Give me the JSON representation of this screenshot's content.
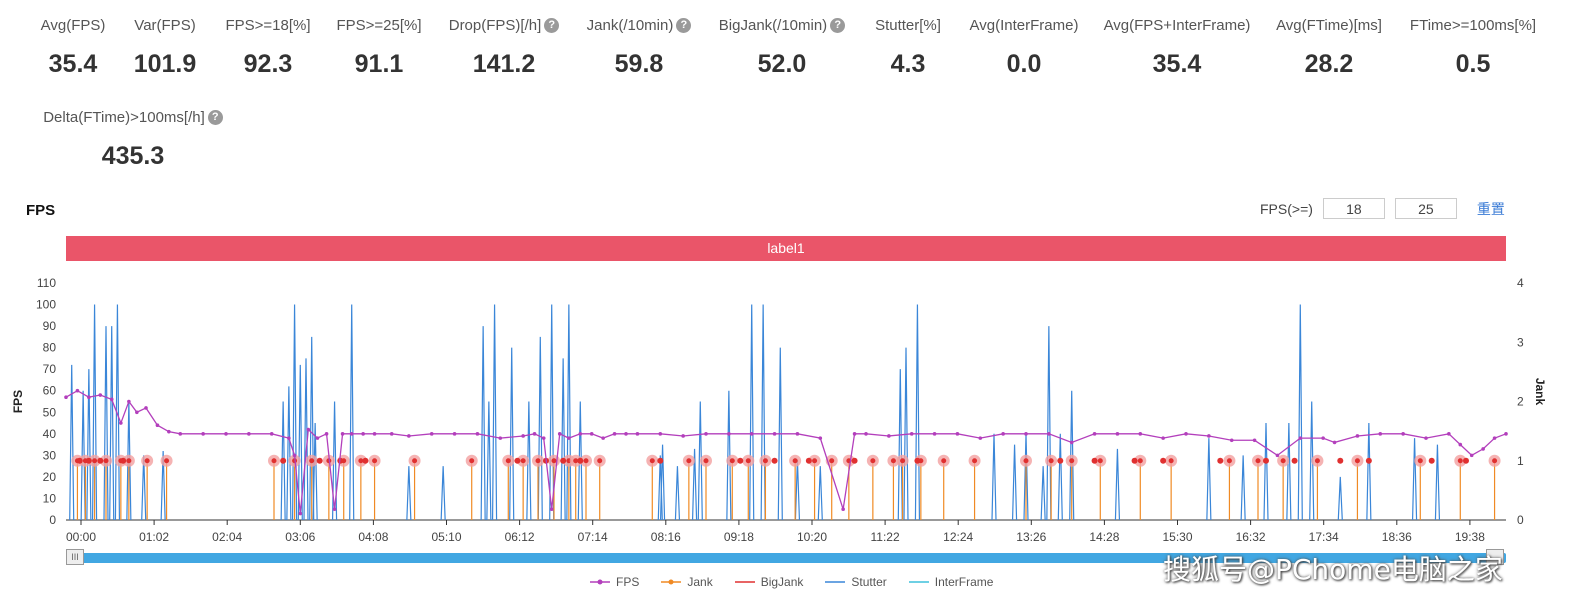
{
  "stats": [
    {
      "label": "Avg(FPS)",
      "value": "35.4",
      "help": false
    },
    {
      "label": "Var(FPS)",
      "value": "101.9",
      "help": false
    },
    {
      "label": "FPS>=18[%]",
      "value": "92.3",
      "help": false
    },
    {
      "label": "FPS>=25[%]",
      "value": "91.1",
      "help": false
    },
    {
      "label": "Drop(FPS)[/h]",
      "value": "141.2",
      "help": true
    },
    {
      "label": "Jank(/10min)",
      "value": "59.8",
      "help": true
    },
    {
      "label": "BigJank(/10min)",
      "value": "52.0",
      "help": true
    },
    {
      "label": "Stutter[%]",
      "value": "4.3",
      "help": false
    },
    {
      "label": "Avg(InterFrame)",
      "value": "0.0",
      "help": false
    },
    {
      "label": "Avg(FPS+InterFrame)",
      "value": "35.4",
      "help": false
    },
    {
      "label": "Avg(FTime)[ms]",
      "value": "28.2",
      "help": false
    },
    {
      "label": "FTime>=100ms[%]",
      "value": "0.5",
      "help": false
    },
    {
      "label": "Delta(FTime)>100ms[/h]",
      "value": "435.3",
      "help": true
    }
  ],
  "help_glyph": "?",
  "chart_title": "FPS",
  "fps_filter": {
    "label": "FPS(>=)",
    "low": "18",
    "high": "25",
    "reset": "重置"
  },
  "label_bar": "label1",
  "slider_grip": "III",
  "watermark": "搜狐号@PChome电脑之家",
  "colors": {
    "fps": "#b33fbc",
    "jank": "#f08a24",
    "bigjank": "#e03030",
    "stutter": "#3a86d8",
    "interframe": "#3fc0dc",
    "label_bar": "#ea5569",
    "slider": "#41a7e2"
  },
  "chart_data": {
    "type": "line",
    "x_ticks": [
      "00:00",
      "01:02",
      "02:04",
      "03:06",
      "04:08",
      "05:10",
      "06:12",
      "07:14",
      "08:16",
      "09:18",
      "10:20",
      "11:22",
      "12:24",
      "13:26",
      "14:28",
      "15:30",
      "16:32",
      "17:34",
      "18:36",
      "19:38"
    ],
    "y_left": {
      "label": "FPS",
      "min": 0,
      "max": 110,
      "ticks": [
        0,
        10,
        20,
        30,
        40,
        50,
        60,
        70,
        80,
        90,
        100,
        110
      ]
    },
    "y_right": {
      "label": "Jank",
      "min": 0,
      "max": 4,
      "ticks": [
        0,
        1,
        2,
        3,
        4
      ]
    },
    "x_range_seconds": [
      0,
      1260
    ],
    "series": [
      {
        "name": "FPS",
        "axis": "left",
        "points": [
          [
            0,
            57
          ],
          [
            10,
            60
          ],
          [
            20,
            57
          ],
          [
            30,
            58
          ],
          [
            40,
            56
          ],
          [
            48,
            45
          ],
          [
            55,
            55
          ],
          [
            62,
            50
          ],
          [
            70,
            52
          ],
          [
            80,
            44
          ],
          [
            90,
            41
          ],
          [
            100,
            40
          ],
          [
            120,
            40
          ],
          [
            140,
            40
          ],
          [
            160,
            40
          ],
          [
            180,
            40
          ],
          [
            195,
            38
          ],
          [
            200,
            30
          ],
          [
            205,
            3
          ],
          [
            212,
            42
          ],
          [
            220,
            38
          ],
          [
            228,
            40
          ],
          [
            235,
            5
          ],
          [
            242,
            40
          ],
          [
            250,
            40
          ],
          [
            260,
            40
          ],
          [
            270,
            40
          ],
          [
            285,
            40
          ],
          [
            300,
            39
          ],
          [
            320,
            40
          ],
          [
            340,
            40
          ],
          [
            360,
            40
          ],
          [
            380,
            38
          ],
          [
            400,
            39
          ],
          [
            410,
            40
          ],
          [
            418,
            38
          ],
          [
            425,
            5
          ],
          [
            432,
            40
          ],
          [
            440,
            38
          ],
          [
            450,
            40
          ],
          [
            460,
            40
          ],
          [
            470,
            38
          ],
          [
            480,
            40
          ],
          [
            490,
            40
          ],
          [
            500,
            40
          ],
          [
            520,
            40
          ],
          [
            540,
            39
          ],
          [
            560,
            40
          ],
          [
            580,
            40
          ],
          [
            600,
            40
          ],
          [
            620,
            40
          ],
          [
            640,
            40
          ],
          [
            660,
            38
          ],
          [
            680,
            5
          ],
          [
            690,
            40
          ],
          [
            700,
            40
          ],
          [
            720,
            39
          ],
          [
            740,
            40
          ],
          [
            760,
            40
          ],
          [
            780,
            40
          ],
          [
            800,
            38
          ],
          [
            820,
            40
          ],
          [
            840,
            40
          ],
          [
            860,
            40
          ],
          [
            880,
            36
          ],
          [
            900,
            40
          ],
          [
            920,
            40
          ],
          [
            940,
            40
          ],
          [
            960,
            38
          ],
          [
            980,
            40
          ],
          [
            1000,
            39
          ],
          [
            1020,
            37
          ],
          [
            1040,
            37
          ],
          [
            1060,
            30
          ],
          [
            1080,
            38
          ],
          [
            1100,
            38
          ],
          [
            1110,
            36
          ],
          [
            1130,
            39
          ],
          [
            1150,
            40
          ],
          [
            1170,
            40
          ],
          [
            1190,
            38
          ],
          [
            1210,
            40
          ],
          [
            1220,
            35
          ],
          [
            1230,
            30
          ],
          [
            1240,
            33
          ],
          [
            1250,
            38
          ],
          [
            1260,
            40
          ]
        ]
      },
      {
        "name": "Jank",
        "axis": "right",
        "events": [
          10,
          17,
          25,
          35,
          48,
          55,
          71,
          88,
          182,
          200,
          215,
          230,
          243,
          258,
          270,
          305,
          355,
          387,
          400,
          413,
          427,
          440,
          446,
          455,
          467,
          513,
          545,
          560,
          583,
          597,
          612,
          638,
          655,
          670,
          685,
          706,
          724,
          732,
          748,
          768,
          795,
          840,
          862,
          880,
          905,
          940,
          967,
          1018,
          1043,
          1065,
          1095,
          1130,
          1185,
          1220,
          1250
        ]
      },
      {
        "name": "BigJank",
        "axis": "right",
        "events": [
          12,
          20,
          30,
          50,
          190,
          222,
          240,
          262,
          395,
          420,
          435,
          450,
          520,
          590,
          620,
          650,
          690,
          745,
          870,
          900,
          935,
          960,
          1010,
          1050,
          1075,
          1115,
          1140,
          1195,
          1225
        ]
      },
      {
        "name": "Stutter",
        "axis": "left",
        "spikes": [
          [
            5,
            72
          ],
          [
            15,
            60
          ],
          [
            20,
            70
          ],
          [
            25,
            100
          ],
          [
            35,
            90
          ],
          [
            40,
            90
          ],
          [
            45,
            100
          ],
          [
            55,
            55
          ],
          [
            68,
            30
          ],
          [
            85,
            32
          ],
          [
            190,
            55
          ],
          [
            195,
            62
          ],
          [
            200,
            100
          ],
          [
            205,
            72
          ],
          [
            210,
            75
          ],
          [
            215,
            85
          ],
          [
            218,
            45
          ],
          [
            235,
            55
          ],
          [
            250,
            100
          ],
          [
            300,
            25
          ],
          [
            330,
            25
          ],
          [
            365,
            90
          ],
          [
            370,
            55
          ],
          [
            375,
            100
          ],
          [
            390,
            80
          ],
          [
            405,
            55
          ],
          [
            415,
            85
          ],
          [
            425,
            100
          ],
          [
            435,
            75
          ],
          [
            440,
            100
          ],
          [
            450,
            55
          ],
          [
            522,
            35
          ],
          [
            520,
            30
          ],
          [
            535,
            25
          ],
          [
            550,
            33
          ],
          [
            555,
            55
          ],
          [
            580,
            60
          ],
          [
            600,
            100
          ],
          [
            610,
            100
          ],
          [
            625,
            80
          ],
          [
            640,
            28
          ],
          [
            660,
            25
          ],
          [
            730,
            70
          ],
          [
            735,
            80
          ],
          [
            745,
            100
          ],
          [
            812,
            40
          ],
          [
            830,
            35
          ],
          [
            840,
            40
          ],
          [
            855,
            25
          ],
          [
            860,
            90
          ],
          [
            870,
            40
          ],
          [
            880,
            60
          ],
          [
            920,
            33
          ],
          [
            1000,
            38
          ],
          [
            1030,
            30
          ],
          [
            1050,
            45
          ],
          [
            1070,
            45
          ],
          [
            1080,
            100
          ],
          [
            1090,
            55
          ],
          [
            1115,
            20
          ],
          [
            1140,
            45
          ],
          [
            1180,
            38
          ],
          [
            1200,
            35
          ]
        ]
      },
      {
        "name": "InterFrame",
        "axis": "left",
        "values": []
      }
    ],
    "legend": [
      "FPS",
      "Jank",
      "BigJank",
      "Stutter",
      "InterFrame"
    ],
    "legend_position": "bottom-center",
    "grid": false
  }
}
